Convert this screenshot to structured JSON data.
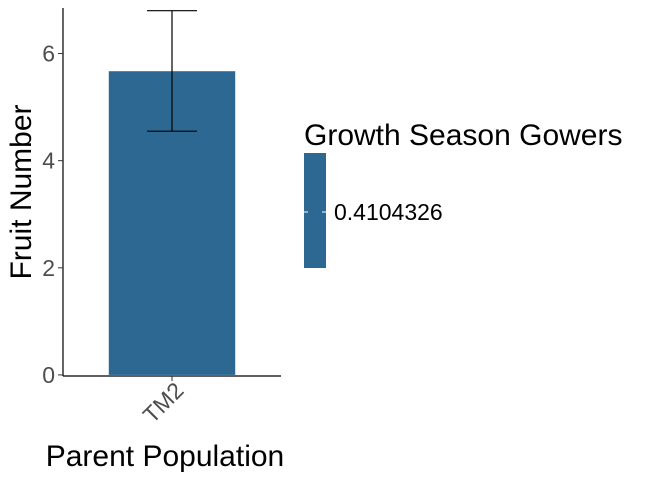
{
  "chart_data": {
    "type": "bar",
    "categories": [
      "TM2"
    ],
    "values": [
      5.67
    ],
    "error_bars": [
      {
        "lower": 4.55,
        "upper": 6.8
      }
    ],
    "xlabel": "Parent Population",
    "ylabel": "Fruit Number",
    "ylim": [
      -0.02,
      6.85
    ],
    "yticks": [
      0,
      2,
      4,
      6
    ],
    "yticklabels": [
      "0",
      "2",
      "4",
      "6"
    ],
    "grid": false,
    "legend": {
      "title": "Growth Season Gowers",
      "position": "right",
      "entries": [
        {
          "label": "0.4104326",
          "color": "#2c6891"
        }
      ]
    },
    "colors": {
      "bar": "#2c6891",
      "axis": "#000000",
      "tick_text": "#4d4d4d"
    }
  }
}
